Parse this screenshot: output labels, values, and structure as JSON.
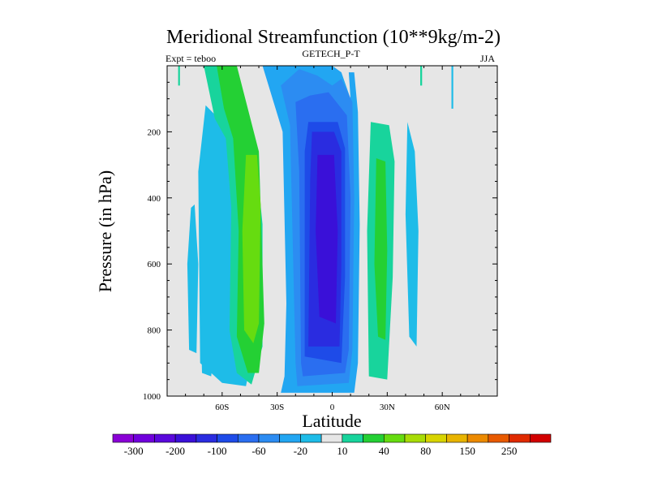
{
  "chart_data": {
    "type": "contour",
    "title": "Meridional Streamfunction (10**9kg/m-2)",
    "left_label": "Expt = teboo",
    "center_label": "GETECH_P-T",
    "right_label": "JJA",
    "xlabel": "Latitude",
    "ylabel": "Pressure (in hPa)",
    "xlim": [
      -90,
      90
    ],
    "ylim": [
      0,
      1000
    ],
    "x_ticks": [
      {
        "value": -60,
        "label": "60S"
      },
      {
        "value": -30,
        "label": "30S"
      },
      {
        "value": 0,
        "label": "0"
      },
      {
        "value": 30,
        "label": "30N"
      },
      {
        "value": 60,
        "label": "60N"
      }
    ],
    "y_ticks": [
      {
        "value": 200,
        "label": "200"
      },
      {
        "value": 400,
        "label": "400"
      },
      {
        "value": 600,
        "label": "600"
      },
      {
        "value": 800,
        "label": "800"
      },
      {
        "value": 1000,
        "label": "1000"
      }
    ],
    "colorbar": {
      "colors": [
        "#8a00d6",
        "#7000dc",
        "#5a08dc",
        "#3a10d8",
        "#2a2ce0",
        "#1e4be8",
        "#2a6ef0",
        "#2c8cf2",
        "#22a6f2",
        "#1ebce8",
        "#e6e6e6",
        "#18d49c",
        "#24d034",
        "#66dc10",
        "#a8dc06",
        "#d8d400",
        "#e8b400",
        "#ec8a00",
        "#e85a00",
        "#e02a00",
        "#d20000"
      ],
      "labels": [
        "-300",
        "-200",
        "-100",
        "-60",
        "-20",
        "10",
        "40",
        "80",
        "150",
        "250"
      ]
    },
    "contours": [
      {
        "name": "tail-left-cyan",
        "color": "#1ebce8",
        "points": [
          [
            -77,
            430
          ],
          [
            -79,
            600
          ],
          [
            -78,
            860
          ],
          [
            -74,
            870
          ],
          [
            -73,
            600
          ],
          [
            -75,
            420
          ]
        ]
      },
      {
        "name": "tail-left-cyan-2",
        "color": "#1ebce8",
        "points": [
          [
            -70,
            560
          ],
          [
            -72,
            700
          ],
          [
            -71,
            930
          ],
          [
            -66,
            940
          ],
          [
            -63,
            780
          ],
          [
            -65,
            580
          ]
        ]
      },
      {
        "name": "south-cyan-big",
        "color": "#1ebce8",
        "points": [
          [
            -73,
            320
          ],
          [
            -72,
            900
          ],
          [
            -66,
            930
          ],
          [
            -60,
            960
          ],
          [
            -47,
            970
          ],
          [
            -41,
            800
          ],
          [
            -45,
            420
          ],
          [
            -52,
            280
          ],
          [
            -60,
            170
          ],
          [
            -69,
            120
          ]
        ]
      },
      {
        "name": "south-teal",
        "color": "#18d49c",
        "points": [
          [
            -70,
            0
          ],
          [
            -64,
            160
          ],
          [
            -58,
            220
          ],
          [
            -55,
            430
          ],
          [
            -56,
            800
          ],
          [
            -52,
            930
          ],
          [
            -44,
            965
          ],
          [
            -38,
            850
          ],
          [
            -38,
            480
          ],
          [
            -43,
            200
          ],
          [
            -49,
            90
          ],
          [
            -53,
            0
          ]
        ]
      },
      {
        "name": "south-green",
        "color": "#24d034",
        "points": [
          [
            -63,
            0
          ],
          [
            -59,
            130
          ],
          [
            -54,
            220
          ],
          [
            -51,
            500
          ],
          [
            -52,
            820
          ],
          [
            -46,
            930
          ],
          [
            -40,
            930
          ],
          [
            -37,
            780
          ],
          [
            -40,
            260
          ],
          [
            -46,
            130
          ],
          [
            -52,
            0
          ]
        ]
      },
      {
        "name": "south-lightgreen",
        "color": "#66dc10",
        "points": [
          [
            -47,
            270
          ],
          [
            -49,
            500
          ],
          [
            -48,
            800
          ],
          [
            -43,
            840
          ],
          [
            -40,
            780
          ],
          [
            -39,
            420
          ],
          [
            -41,
            270
          ]
        ]
      },
      {
        "name": "north-teal",
        "color": "#18d49c",
        "points": [
          [
            21,
            170
          ],
          [
            19,
            500
          ],
          [
            20,
            940
          ],
          [
            30,
            950
          ],
          [
            33,
            640
          ],
          [
            34,
            290
          ],
          [
            31,
            180
          ]
        ]
      },
      {
        "name": "north-green",
        "color": "#24d034",
        "points": [
          [
            24,
            280
          ],
          [
            23,
            600
          ],
          [
            25,
            820
          ],
          [
            29,
            830
          ],
          [
            30,
            560
          ],
          [
            29,
            290
          ]
        ]
      },
      {
        "name": "north-cyan",
        "color": "#1ebce8",
        "points": [
          [
            41,
            170
          ],
          [
            40,
            450
          ],
          [
            42,
            820
          ],
          [
            46,
            850
          ],
          [
            47,
            500
          ],
          [
            45,
            260
          ]
        ]
      },
      {
        "name": "top-teal-right",
        "color": "#18d49c",
        "points": [
          [
            48,
            0
          ],
          [
            48,
            60
          ],
          [
            49,
            60
          ],
          [
            49,
            0
          ]
        ]
      },
      {
        "name": "top-teal-left",
        "color": "#18d49c",
        "points": [
          [
            -84,
            0
          ],
          [
            -84,
            60
          ],
          [
            -83,
            60
          ],
          [
            -83,
            0
          ]
        ]
      },
      {
        "name": "top-cyan-right",
        "color": "#1ebce8",
        "points": [
          [
            65,
            0
          ],
          [
            65,
            130
          ],
          [
            66,
            130
          ],
          [
            66,
            0
          ]
        ]
      },
      {
        "name": "core-c1",
        "color": "#22a6f2",
        "points": [
          [
            -38,
            0
          ],
          [
            -27,
            200
          ],
          [
            -25,
            720
          ],
          [
            -26,
            940
          ],
          [
            -28,
            990
          ],
          [
            12,
            990
          ],
          [
            14,
            900
          ],
          [
            15,
            480
          ],
          [
            14,
            140
          ],
          [
            12,
            20
          ],
          [
            9,
            20
          ],
          [
            10,
            100
          ],
          [
            5,
            20
          ],
          [
            0,
            0
          ]
        ]
      },
      {
        "name": "core-c2",
        "color": "#2c8cf2",
        "points": [
          [
            -28,
            60
          ],
          [
            -23,
            180
          ],
          [
            -20,
            900
          ],
          [
            -19,
            970
          ],
          [
            9,
            960
          ],
          [
            11,
            860
          ],
          [
            12,
            400
          ],
          [
            11,
            110
          ],
          [
            5,
            40
          ],
          [
            0,
            60
          ],
          [
            -8,
            30
          ],
          [
            -18,
            10
          ]
        ]
      },
      {
        "name": "core-c3",
        "color": "#2a6ef0",
        "points": [
          [
            -20,
            110
          ],
          [
            -18,
            320
          ],
          [
            -17,
            900
          ],
          [
            -16,
            940
          ],
          [
            7,
            930
          ],
          [
            9,
            860
          ],
          [
            10,
            400
          ],
          [
            8,
            150
          ],
          [
            -2,
            80
          ],
          [
            -12,
            90
          ]
        ]
      },
      {
        "name": "core-c4",
        "color": "#1e4be8",
        "points": [
          [
            -13,
            170
          ],
          [
            -15,
            260
          ],
          [
            -15,
            880
          ],
          [
            5,
            900
          ],
          [
            7,
            640
          ],
          [
            7,
            250
          ],
          [
            3,
            170
          ]
        ]
      },
      {
        "name": "core-c5",
        "color": "#2a2ce0",
        "points": [
          [
            -11,
            200
          ],
          [
            -12,
            340
          ],
          [
            -13,
            850
          ],
          [
            4,
            850
          ],
          [
            5,
            600
          ],
          [
            5,
            260
          ],
          [
            1,
            200
          ]
        ]
      },
      {
        "name": "core-c6",
        "color": "#3a10d8",
        "points": [
          [
            -8,
            270
          ],
          [
            -9,
            500
          ],
          [
            -7,
            760
          ],
          [
            2,
            780
          ],
          [
            3,
            500
          ],
          [
            1,
            270
          ]
        ]
      }
    ]
  }
}
